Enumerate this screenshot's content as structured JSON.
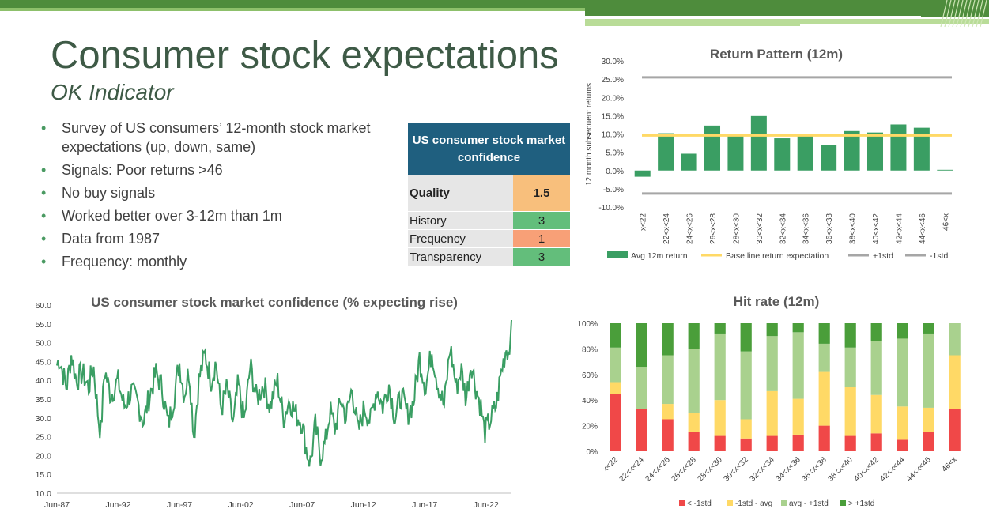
{
  "slide": {
    "title": "Consumer stock expectations",
    "subtitle": "OK Indicator",
    "bullets": [
      "Survey of US consumers’ 12-month stock market expectations (up, down, same)",
      "Signals: Poor returns >46",
      "No buy signals",
      "Worked better over 3-12m than 1m",
      "Data from 1987",
      "Frequency: monthly"
    ],
    "accent_colors": {
      "title": "#3e5a46",
      "bar_green": "#3a9e63",
      "header_blue": "#1f5f7f"
    }
  },
  "score_table": {
    "header": "US consumer stock market confidence",
    "rows": [
      {
        "label": "Quality",
        "value": "1.5",
        "color": "#f8bf7c",
        "bold": true
      },
      {
        "label": "History",
        "value": "3",
        "color": "#63be7b",
        "bold": false
      },
      {
        "label": "Frequency",
        "value": "1",
        "color": "#f8a077",
        "bold": false
      },
      {
        "label": "Transparency",
        "value": "3",
        "color": "#63be7b",
        "bold": false
      }
    ]
  },
  "chart_data": [
    {
      "type": "bar",
      "title": "Return Pattern (12m)",
      "xlabel": "",
      "ylabel": "12 month subsequent returns",
      "categories": [
        "x<22",
        "22<x<24",
        "24<x<26",
        "26<x<28",
        "28<x<30",
        "30<x<32",
        "32<x<34",
        "34<x<36",
        "36<x<38",
        "38<x<40",
        "40<x<42",
        "42<x<44",
        "44<x<46",
        "46<x"
      ],
      "series": [
        {
          "name": "Avg 12m return",
          "type": "bar",
          "color": "#3a9e63",
          "values": [
            -1.7,
            10.2,
            4.6,
            12.3,
            9.4,
            14.9,
            8.8,
            9.5,
            7.0,
            10.8,
            10.4,
            12.6,
            11.7,
            0.2
          ]
        },
        {
          "name": "Base line return expectation",
          "type": "line",
          "color": "#ffd966",
          "value": 9.6
        },
        {
          "name": "+1std",
          "type": "line",
          "color": "#a6a6a6",
          "value": 25.5
        },
        {
          "name": "-1std",
          "type": "line",
          "color": "#a6a6a6",
          "value": -6.3
        }
      ],
      "yticks": [
        "-10.0%",
        "-5.0%",
        "0.0%",
        "5.0%",
        "10.0%",
        "15.0%",
        "20.0%",
        "25.0%",
        "30.0%"
      ],
      "ylim": [
        -10,
        30
      ],
      "legend": "bottom"
    },
    {
      "type": "line",
      "title": "US consumer stock market confidence (% expecting rise)",
      "xlabel": "",
      "ylabel": "",
      "ylim": [
        10,
        60
      ],
      "yticks": [
        "10.0",
        "15.0",
        "20.0",
        "25.0",
        "30.0",
        "35.0",
        "40.0",
        "45.0",
        "50.0",
        "55.0",
        "60.0"
      ],
      "xticks": [
        "Jun-87",
        "Jun-92",
        "Jun-97",
        "Jun-02",
        "Jun-07",
        "Jun-12",
        "Jun-17",
        "Jun-22"
      ],
      "xrange_years": [
        1987.42,
        2024.5
      ],
      "anchors": [
        [
          1987.42,
          44
        ],
        [
          1987.6,
          46
        ],
        [
          1987.9,
          42
        ],
        [
          1988.2,
          38
        ],
        [
          1988.6,
          47
        ],
        [
          1989.0,
          40
        ],
        [
          1989.5,
          42
        ],
        [
          1990.0,
          38
        ],
        [
          1990.4,
          44
        ],
        [
          1990.8,
          30
        ],
        [
          1991.0,
          26
        ],
        [
          1991.3,
          43
        ],
        [
          1991.8,
          36
        ],
        [
          1992.4,
          40
        ],
        [
          1992.9,
          33
        ],
        [
          1993.5,
          37
        ],
        [
          1994.0,
          34
        ],
        [
          1994.5,
          29
        ],
        [
          1994.9,
          35
        ],
        [
          1995.5,
          42
        ],
        [
          1996.0,
          38
        ],
        [
          1996.5,
          28
        ],
        [
          1997.0,
          36
        ],
        [
          1997.4,
          45
        ],
        [
          1997.8,
          36
        ],
        [
          1998.2,
          43
        ],
        [
          1998.6,
          25
        ],
        [
          1999.0,
          40
        ],
        [
          1999.5,
          47
        ],
        [
          2000.0,
          40
        ],
        [
          2000.4,
          45
        ],
        [
          2000.8,
          32
        ],
        [
          2001.3,
          38
        ],
        [
          2001.8,
          28
        ],
        [
          2002.2,
          39
        ],
        [
          2002.7,
          29
        ],
        [
          2003.2,
          44
        ],
        [
          2003.7,
          35
        ],
        [
          2004.3,
          39
        ],
        [
          2004.8,
          33
        ],
        [
          2005.4,
          40
        ],
        [
          2005.9,
          30
        ],
        [
          2006.4,
          35
        ],
        [
          2006.9,
          31
        ],
        [
          2007.4,
          29
        ],
        [
          2007.8,
          21
        ],
        [
          2008.1,
          18
        ],
        [
          2008.5,
          28
        ],
        [
          2008.9,
          20
        ],
        [
          2009.3,
          23
        ],
        [
          2009.7,
          32
        ],
        [
          2010.1,
          27
        ],
        [
          2010.6,
          35
        ],
        [
          2011.0,
          30
        ],
        [
          2011.5,
          38
        ],
        [
          2012.0,
          26
        ],
        [
          2012.5,
          33
        ],
        [
          2013.0,
          29
        ],
        [
          2013.5,
          38
        ],
        [
          2014.0,
          33
        ],
        [
          2014.5,
          39
        ],
        [
          2015.0,
          30
        ],
        [
          2015.5,
          36
        ],
        [
          2016.0,
          31
        ],
        [
          2016.5,
          34
        ],
        [
          2017.0,
          46
        ],
        [
          2017.5,
          38
        ],
        [
          2018.0,
          48
        ],
        [
          2018.5,
          39
        ],
        [
          2019.0,
          33
        ],
        [
          2019.5,
          49
        ],
        [
          2020.0,
          38
        ],
        [
          2020.4,
          43
        ],
        [
          2020.8,
          35
        ],
        [
          2021.2,
          45
        ],
        [
          2021.6,
          38
        ],
        [
          2022.0,
          33
        ],
        [
          2022.3,
          26
        ],
        [
          2022.7,
          29
        ],
        [
          2023.0,
          31
        ],
        [
          2023.3,
          34
        ],
        [
          2023.6,
          41
        ],
        [
          2023.9,
          46
        ],
        [
          2024.1,
          49
        ],
        [
          2024.3,
          47
        ],
        [
          2024.5,
          56
        ]
      ],
      "series": [
        {
          "name": "",
          "color": "#3a9e63"
        }
      ]
    },
    {
      "type": "bar",
      "stacked": true,
      "title": "Hit rate (12m)",
      "xlabel": "",
      "ylabel": "",
      "ylim": [
        0,
        100
      ],
      "yticks": [
        "0%",
        "20%",
        "40%",
        "60%",
        "80%",
        "100%"
      ],
      "categories": [
        "x<22",
        "22<x<24",
        "24<x<26",
        "26<x<28",
        "28<x<30",
        "30<x<32",
        "32<x<34",
        "34<x<36",
        "36<x<38",
        "38<x<40",
        "40<x<42",
        "42<x<44",
        "44<x<46",
        "46<x"
      ],
      "series": [
        {
          "name": "< -1std",
          "color": "#f04848",
          "values": [
            45,
            33,
            25,
            15,
            12,
            10,
            12,
            13,
            20,
            12,
            14,
            9,
            15,
            33
          ]
        },
        {
          "name": "-1std - avg",
          "color": "#ffd966",
          "values": [
            9,
            0,
            12,
            15,
            28,
            15,
            35,
            28,
            42,
            38,
            30,
            26,
            19,
            42
          ]
        },
        {
          "name": "avg - +1std",
          "color": "#a9d18e",
          "values": [
            27,
            33,
            38,
            50,
            52,
            53,
            43,
            52,
            22,
            31,
            42,
            53,
            58,
            25
          ]
        },
        {
          "name": "> +1std",
          "color": "#4a9e3a",
          "values": [
            19,
            34,
            25,
            20,
            8,
            22,
            10,
            7,
            16,
            19,
            14,
            12,
            8,
            0
          ]
        }
      ],
      "legend": "bottom"
    }
  ]
}
